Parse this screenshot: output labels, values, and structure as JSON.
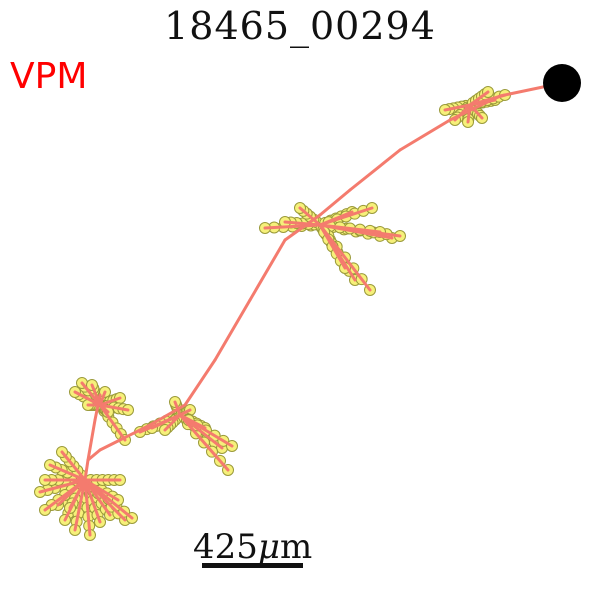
{
  "title": "18465_00294",
  "region_label": "VPM",
  "scale_bar": {
    "value": "425",
    "unit_symbol": "μ",
    "unit_suffix": "m"
  },
  "colors": {
    "region_label": "#ff0000",
    "axon_stroke": "#f47b6e",
    "bouton_fill": "#f6f07a",
    "bouton_stroke": "#9a9a3a",
    "soma": "#000000",
    "background": "#ffffff"
  }
}
